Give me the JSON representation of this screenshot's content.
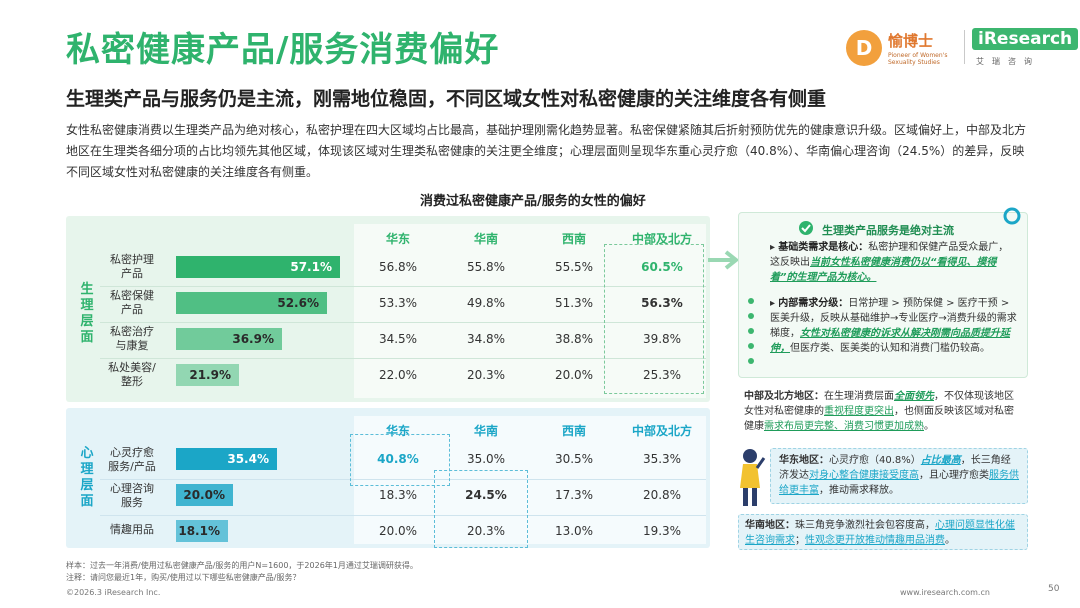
{
  "page": {
    "title": "私密健康产品/服务消费偏好",
    "subtitle": "生理类产品与服务仍是主流，刚需地位稳固，不同区域女性对私密健康的关注维度各有侧重",
    "body": "女性私密健康消费以生理类产品为绝对核心，私密护理在四大区域均占比最高，基础护理刚需化趋势显著。私密保健紧随其后折射预防优先的健康意识升级。区域偏好上，中部及北方地区在生理类各细分项的占比均领先其他区域，体现该区域对生理类私密健康的关注更全维度；心理层面则呈现华东重心灵疗愈（40.8%）、华南偏心理咨询（24.5%）的差异，反映不同区域女性对私密健康的关注维度各有侧重。",
    "page_number": "50"
  },
  "logo": {
    "mark": "D",
    "cn": "愉博士",
    "en": "Pioneer of Women's Sexuality Studies",
    "iresearch": "iResearch",
    "iresearch_cn": "艾瑞咨询"
  },
  "chart_data": {
    "type": "bar",
    "title": "消费过私密健康产品/服务的女性的偏好",
    "regions": [
      "华东",
      "华南",
      "西南",
      "中部及北方"
    ],
    "groups": [
      {
        "name": "生理层面",
        "color": "#2fb36d",
        "categories": [
          {
            "label": "私密护理产品",
            "total": 57.1,
            "total_label": "57.1%",
            "regional": [
              "56.8%",
              "55.8%",
              "55.5%",
              "60.5%"
            ]
          },
          {
            "label": "私密保健产品",
            "total": 52.6,
            "total_label": "52.6%",
            "regional": [
              "53.3%",
              "49.8%",
              "51.3%",
              "56.3%"
            ]
          },
          {
            "label": "私密治疗与康复",
            "total": 36.9,
            "total_label": "36.9%",
            "regional": [
              "34.5%",
              "34.8%",
              "38.8%",
              "39.8%"
            ]
          },
          {
            "label": "私处美容/整形",
            "total": 21.9,
            "total_label": "21.9%",
            "regional": [
              "22.0%",
              "20.3%",
              "20.0%",
              "25.3%"
            ]
          }
        ]
      },
      {
        "name": "心理层面",
        "color": "#1ba6c7",
        "categories": [
          {
            "label": "心灵疗愈服务/产品",
            "total": 35.4,
            "total_label": "35.4%",
            "regional": [
              "40.8%",
              "35.0%",
              "30.5%",
              "35.3%"
            ]
          },
          {
            "label": "心理咨询服务",
            "total": 20.0,
            "total_label": "20.0%",
            "regional": [
              "18.3%",
              "24.5%",
              "17.3%",
              "20.8%"
            ]
          },
          {
            "label": "情趣用品",
            "total": 18.1,
            "total_label": "18.1%",
            "regional": [
              "20.0%",
              "20.3%",
              "13.0%",
              "19.3%"
            ]
          }
        ]
      }
    ],
    "xlim": [
      0,
      60
    ]
  },
  "labels": {
    "phys_side": [
      "生",
      "理",
      "层",
      "面"
    ],
    "psy_side": [
      "心",
      "理",
      "层",
      "面"
    ],
    "row_phys": [
      [
        "私密护理",
        "产品"
      ],
      [
        "私密保健",
        "产品"
      ],
      [
        "私密治疗",
        "与康复"
      ],
      [
        "私处美容/",
        "整形"
      ]
    ],
    "row_psy": [
      [
        "心灵疗愈",
        "服务/产品"
      ],
      [
        "心理咨询",
        "服务"
      ],
      [
        "情趣用品",
        ""
      ]
    ]
  },
  "insights": {
    "card_title": "生理类产品服务是绝对主流",
    "point1_head": "基础类需求是核心：",
    "point1_a": "私密护理和保健产品受众最广，这反映出",
    "point1_em": "当前女性私密健康消费仍以“看得见、摸得着”的生理产品为核心。",
    "point2_head": "内部需求分级：",
    "point2_a": "日常护理 > 预防保健 > 医疗干预 > 医美升级，反映从基础维护→专业医疗→消费升级的需求梯度，",
    "point2_em": "女性对私密健康的诉求从解决刚需向品质提升延伸，",
    "point2_b": "但医疗类、医美类的认知和消费门槛仍较高。",
    "north_head": "中部及北方地区：",
    "north_a": "在生理消费层面",
    "north_em": "全面领先",
    "north_b": "，不仅体现该地区女性对私密健康的",
    "north_u1": "重视程度更突出",
    "north_c": "，也侧面反映该区域对私密健康",
    "north_u2": "需求布局更完整、消费习惯更加成熟",
    "north_d": "。",
    "east_head": "华东地区：",
    "east_a": "心灵疗愈（40.8%）",
    "east_em": "占比最高",
    "east_b": "，长三角经济发达",
    "east_u1": "对身心整合健康接受度高",
    "east_c": "，且心理疗愈类",
    "east_u2": "服务供给更丰富",
    "east_d": "，推动需求释放。",
    "south_head": "华南地区：",
    "south_a": "珠三角竞争激烈社会包容度高，",
    "south_u1": "心理问题显性化催生咨询需求",
    "south_b": "；",
    "south_u2": "性观念更开放推动情趣用品消费",
    "south_c": "。"
  },
  "footnotes": {
    "sample": "样本：过去一年消费/使用过私密健康产品/服务的用户N=1600，于2026年1月通过艾瑞调研获得。",
    "note": "注释：请问您最近1年，购买/使用过以下哪些私密健康产品/服务？",
    "copyright": "©2026.3 iResearch Inc.",
    "site": "www.iresearch.com.cn"
  },
  "colors": {
    "green": "#2fb36d",
    "blue": "#1ba6c7"
  }
}
